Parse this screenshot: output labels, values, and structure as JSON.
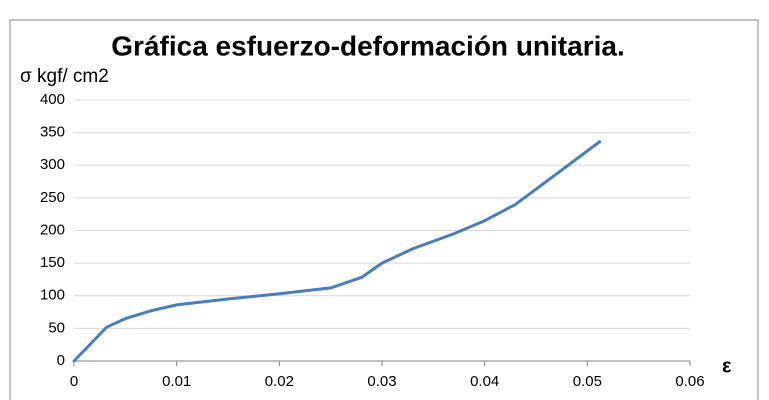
{
  "chart_data": {
    "type": "line",
    "title": "Gráfica esfuerzo-deformación  unitaria.",
    "y_label": "σ kgf/ cm2",
    "x_label": "ε",
    "x": [
      0,
      0.0032,
      0.005,
      0.0075,
      0.01,
      0.015,
      0.02,
      0.025,
      0.028,
      0.03,
      0.033,
      0.037,
      0.04,
      0.043,
      0.046,
      0.0512
    ],
    "series": [
      {
        "name": "σ",
        "color": "#4a7ebb",
        "values": [
          0,
          52,
          65,
          77,
          86,
          95,
          103,
          112,
          128,
          150,
          172,
          195,
          215,
          240,
          275,
          336
        ]
      }
    ],
    "xlim": [
      0,
      0.06
    ],
    "xticks": [
      0,
      0.01,
      0.02,
      0.03,
      0.04,
      0.05,
      0.06
    ],
    "ylim": [
      0,
      400
    ],
    "yticks": [
      0,
      50,
      100,
      150,
      200,
      250,
      300,
      350,
      400
    ],
    "grid": true,
    "legend": false
  }
}
